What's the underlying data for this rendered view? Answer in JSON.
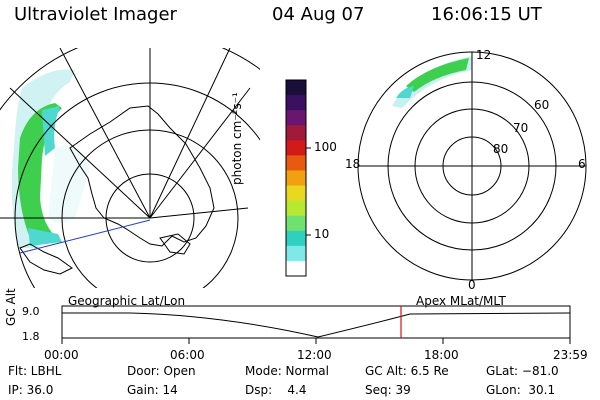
{
  "header": {
    "instrument": "Ultraviolet Imager",
    "date": "04 Aug 07",
    "time": "16:06:15 UT"
  },
  "colorbar": {
    "unit_label": "photon cm⁻²s⁻¹",
    "ticks": [
      "100",
      "10"
    ],
    "colors": [
      "#1a0f3a",
      "#3a1160",
      "#6a1670",
      "#a01a3a",
      "#d21a1a",
      "#e85a10",
      "#f0a010",
      "#e8d820",
      "#b8e830",
      "#70e070",
      "#30d0c0",
      "#80e8e8",
      "#ffffff"
    ]
  },
  "apex": {
    "mlt_labels": [
      "12",
      "18",
      "6",
      "0"
    ],
    "lat_labels": [
      "60",
      "70",
      "80"
    ]
  },
  "strip": {
    "left_title": "Geographic Lat/Lon",
    "right_title": "Apex MLat/MLT",
    "axis_label": "GC Alt",
    "y_ticks": [
      "9.0",
      "1.8"
    ],
    "x_ticks": [
      "00:00",
      "06:00",
      "12:00",
      "18:00",
      "23:59"
    ],
    "marker_color": "#dd1111"
  },
  "footer": {
    "row1": [
      "Flt: LBHL",
      "Door: Open",
      "Mode: Normal",
      "GC Alt: 6.5 Re",
      "GLat: −81.0"
    ],
    "row2": [
      "IP: 36.0",
      "Gain: 14",
      "Dsp:    4.4",
      "Seq: 39",
      "GLon:  30.1"
    ]
  },
  "colors": {
    "aurora_green": "#3ecf4e",
    "aurora_cyan": "#4fd8d0",
    "aurora_pale": "#c8f0f0",
    "map_line": "#000000",
    "track_line": "#2040c0"
  }
}
